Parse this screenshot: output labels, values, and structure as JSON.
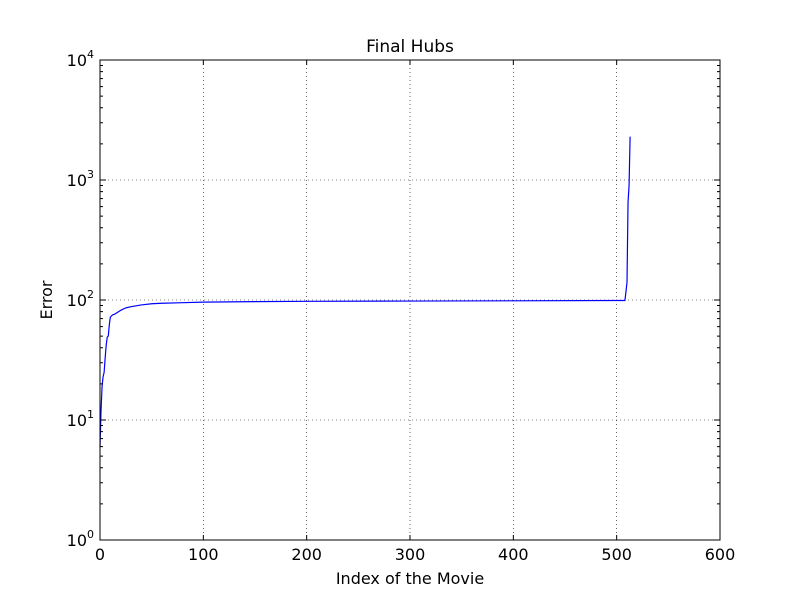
{
  "chart_data": {
    "type": "line",
    "title": "Final Hubs",
    "xlabel": "Index of the Movie",
    "ylabel": "Error",
    "xlim": [
      0,
      600
    ],
    "ylim": [
      1,
      10000
    ],
    "yscale": "log",
    "grid": true,
    "line_color": "#0000ff",
    "x_ticks": [
      0,
      100,
      200,
      300,
      400,
      500,
      600
    ],
    "x_tick_labels": [
      "0",
      "100",
      "200",
      "300",
      "400",
      "500",
      "600"
    ],
    "y_ticks": [
      1,
      10,
      100,
      1000,
      10000
    ],
    "y_tick_labels": [
      {
        "base": "10",
        "exp": "0"
      },
      {
        "base": "10",
        "exp": "1"
      },
      {
        "base": "10",
        "exp": "2"
      },
      {
        "base": "10",
        "exp": "3"
      },
      {
        "base": "10",
        "exp": "4"
      }
    ],
    "series": [
      {
        "x": [
          0,
          1,
          2,
          3,
          4,
          5,
          6,
          7,
          8,
          9,
          10,
          12,
          14,
          16,
          20,
          25,
          30,
          40,
          50,
          60,
          80,
          100,
          150,
          200,
          300,
          400,
          500,
          508,
          510,
          511,
          512,
          513
        ],
        "y": [
          6,
          12,
          19,
          23,
          25,
          33,
          42,
          49,
          50,
          62,
          72,
          75,
          76,
          78,
          82,
          86,
          88,
          91,
          93,
          94,
          95,
          96,
          97,
          97.5,
          98,
          98.5,
          99,
          99,
          140,
          650,
          900,
          2300
        ]
      }
    ]
  }
}
